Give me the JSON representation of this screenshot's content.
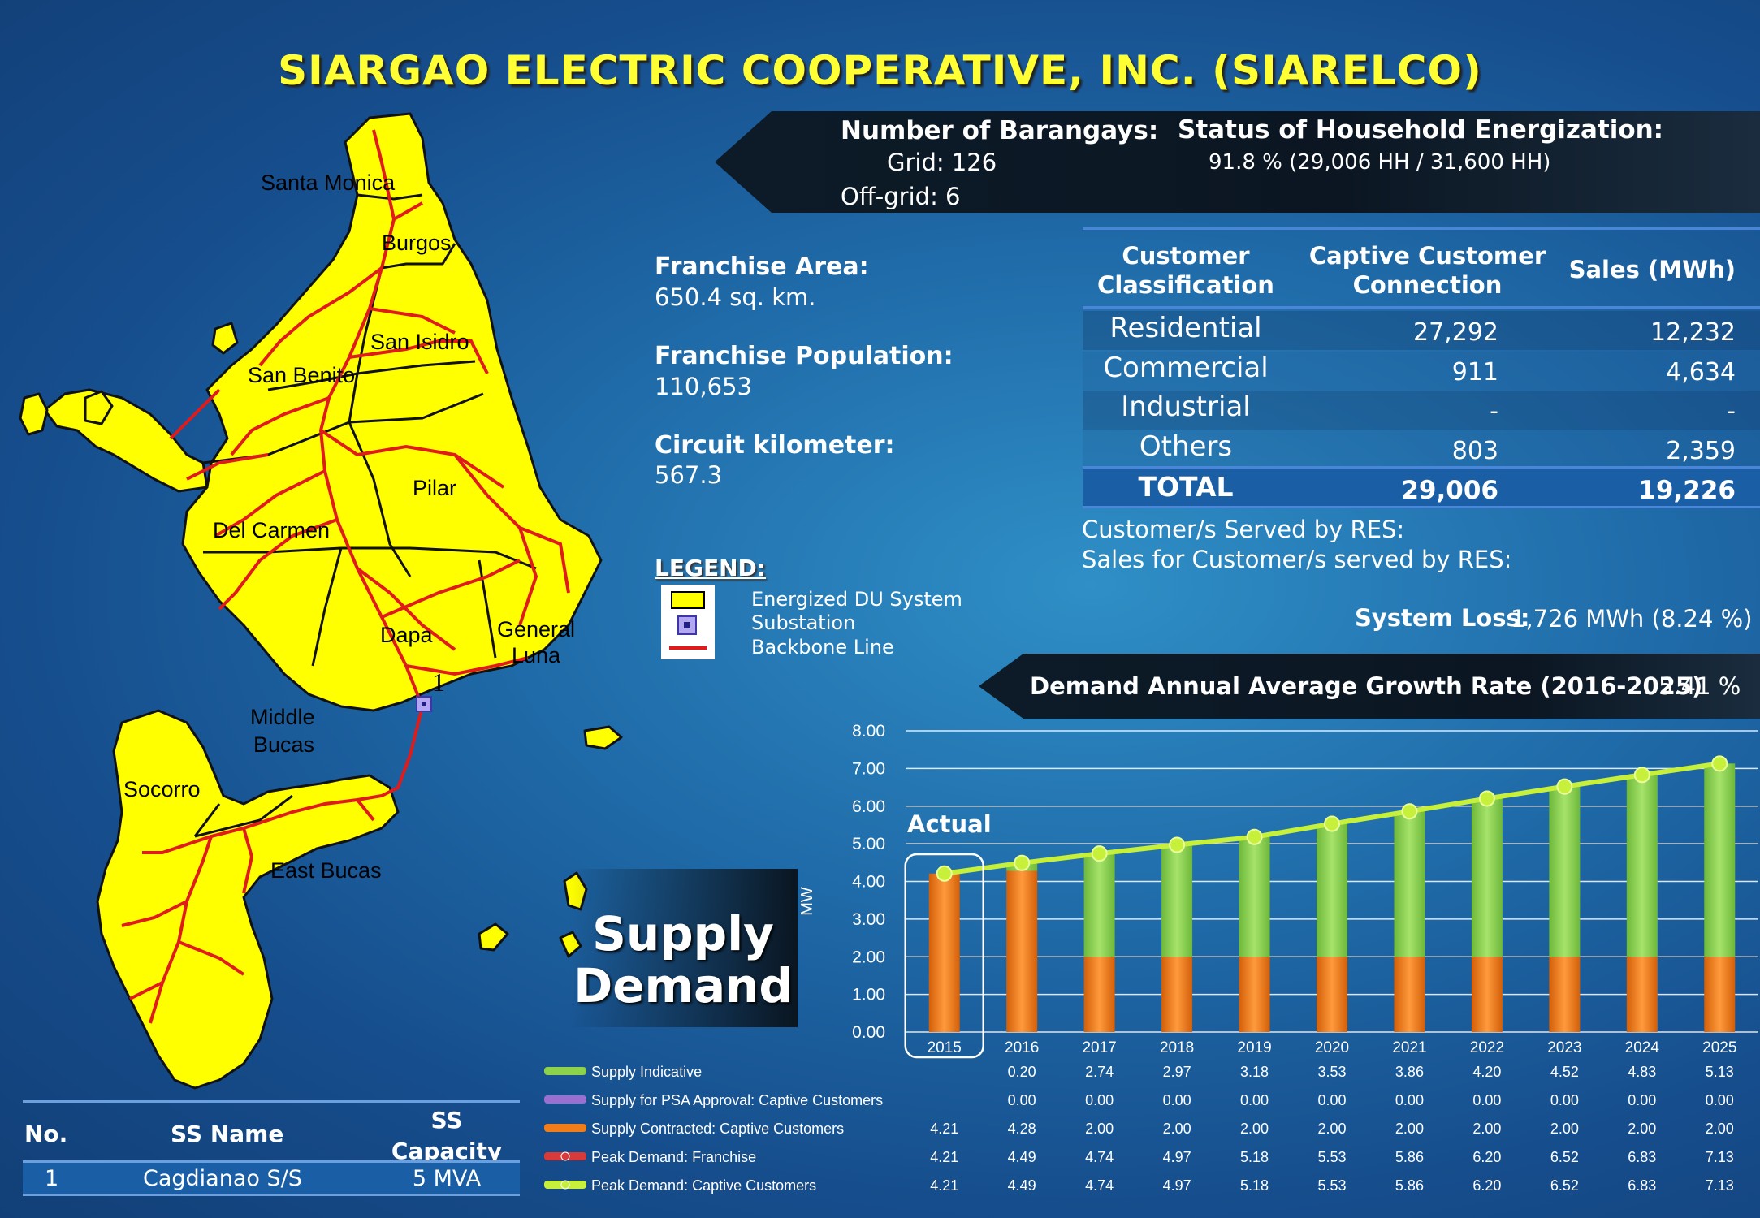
{
  "title": "SIARGAO ELECTRIC COOPERATIVE, INC. (SIARELCO)",
  "barangays": {
    "label": "Number of Barangays:",
    "grid": "Grid: 126",
    "offgrid": "Off-grid:  6"
  },
  "energization": {
    "label": "Status of Household Energization:",
    "value": "91.8 % (29,006 HH / 31,600 HH)"
  },
  "franchise": {
    "area_label": "Franchise Area:",
    "area_value": "650.4 sq. km.",
    "pop_label": "Franchise Population:",
    "pop_value": "110,653",
    "circuit_label": "Circuit kilometer:",
    "circuit_value": "567.3"
  },
  "legend": {
    "title": "LEGEND:",
    "items": [
      "Energized DU System",
      "Substation",
      "Backbone Line"
    ]
  },
  "customer_table": {
    "headers": [
      "Customer Classification",
      "Captive Customer Connection",
      "Sales (MWh)"
    ],
    "rows": [
      [
        "Residential",
        "27,292",
        "12,232"
      ],
      [
        "Commercial",
        "911",
        "4,634"
      ],
      [
        "Industrial",
        "-",
        "-"
      ],
      [
        "Others",
        "803",
        "2,359"
      ]
    ],
    "total": [
      "TOTAL",
      "29,006",
      "19,226"
    ]
  },
  "res": {
    "served": "Customer/s Served by RES:",
    "sales": "Sales for Customer/s served by RES:"
  },
  "system_loss": {
    "label": "System Loss:",
    "value": "1,726 MWh (8.24 %)"
  },
  "growth": {
    "label": "Demand Annual Average Growth Rate (2016-2025)",
    "value": ": 5.41 %"
  },
  "map_labels": {
    "santa_monica": "Santa Monica",
    "burgos": "Burgos",
    "san_isidro": "San Isidro",
    "san_benito": "San Benito",
    "pilar": "Pilar",
    "del_carmen": "Del Carmen",
    "dapa": "Dapa",
    "general_luna_1": "General",
    "general_luna_2": "Luna",
    "middle_bucas_1": "Middle",
    "middle_bucas_2": "Bucas",
    "socorro": "Socorro",
    "east_bucas": "East Bucas",
    "substation_num": "1"
  },
  "supply_demand": {
    "line1": "Supply",
    "line2": "Demand"
  },
  "ss_table": {
    "headers": [
      "No.",
      "SS Name",
      "SS Capacity"
    ],
    "row": [
      "1",
      "Cagdianao S/S",
      "5 MVA"
    ]
  },
  "chart_data": {
    "type": "bar",
    "ylabel": "MW",
    "ylim": [
      0,
      8
    ],
    "yticks": [
      "8.00",
      "7.00",
      "6.00",
      "5.00",
      "4.00",
      "3.00",
      "2.00",
      "1.00",
      "0.00"
    ],
    "annotation": "Actual",
    "categories": [
      "2015",
      "2016",
      "2017",
      "2018",
      "2019",
      "2020",
      "2021",
      "2022",
      "2023",
      "2024",
      "2025"
    ],
    "series": [
      {
        "name": "Supply Indicative",
        "color": "#8ed14a",
        "values": [
          null,
          0.2,
          2.74,
          2.97,
          3.18,
          3.53,
          3.86,
          4.2,
          4.52,
          4.83,
          5.13
        ],
        "labels": [
          "",
          "0.20",
          "2.74",
          "2.97",
          "3.18",
          "3.53",
          "3.86",
          "4.20",
          "4.52",
          "4.83",
          "5.13"
        ]
      },
      {
        "name": "Supply for PSA Approval:  Captive Customers",
        "color": "#9b6fcf",
        "values": [
          null,
          0,
          0,
          0,
          0,
          0,
          0,
          0,
          0,
          0,
          0
        ],
        "labels": [
          "",
          "0.00",
          "0.00",
          "0.00",
          "0.00",
          "0.00",
          "0.00",
          "0.00",
          "0.00",
          "0.00",
          "0.00"
        ]
      },
      {
        "name": "Supply Contracted:  Captive Customers",
        "color": "#f07d18",
        "values": [
          4.21,
          4.28,
          2.0,
          2.0,
          2.0,
          2.0,
          2.0,
          2.0,
          2.0,
          2.0,
          2.0
        ],
        "labels": [
          "4.21",
          "4.28",
          "2.00",
          "2.00",
          "2.00",
          "2.00",
          "2.00",
          "2.00",
          "2.00",
          "2.00",
          "2.00"
        ]
      },
      {
        "name": "Peak Demand:  Franchise",
        "color": "#d83a3a",
        "values": [
          4.21,
          4.49,
          4.74,
          4.97,
          5.18,
          5.53,
          5.86,
          6.2,
          6.52,
          6.83,
          7.13
        ],
        "labels": [
          "4.21",
          "4.49",
          "4.74",
          "4.97",
          "5.18",
          "5.53",
          "5.86",
          "6.20",
          "6.52",
          "6.83",
          "7.13"
        ]
      },
      {
        "name": "Peak Demand:  Captive Customers",
        "color": "#c6f03a",
        "values": [
          4.21,
          4.49,
          4.74,
          4.97,
          5.18,
          5.53,
          5.86,
          6.2,
          6.52,
          6.83,
          7.13
        ],
        "labels": [
          "4.21",
          "4.49",
          "4.74",
          "4.97",
          "5.18",
          "5.53",
          "5.86",
          "6.20",
          "6.52",
          "6.83",
          "7.13"
        ]
      }
    ]
  }
}
